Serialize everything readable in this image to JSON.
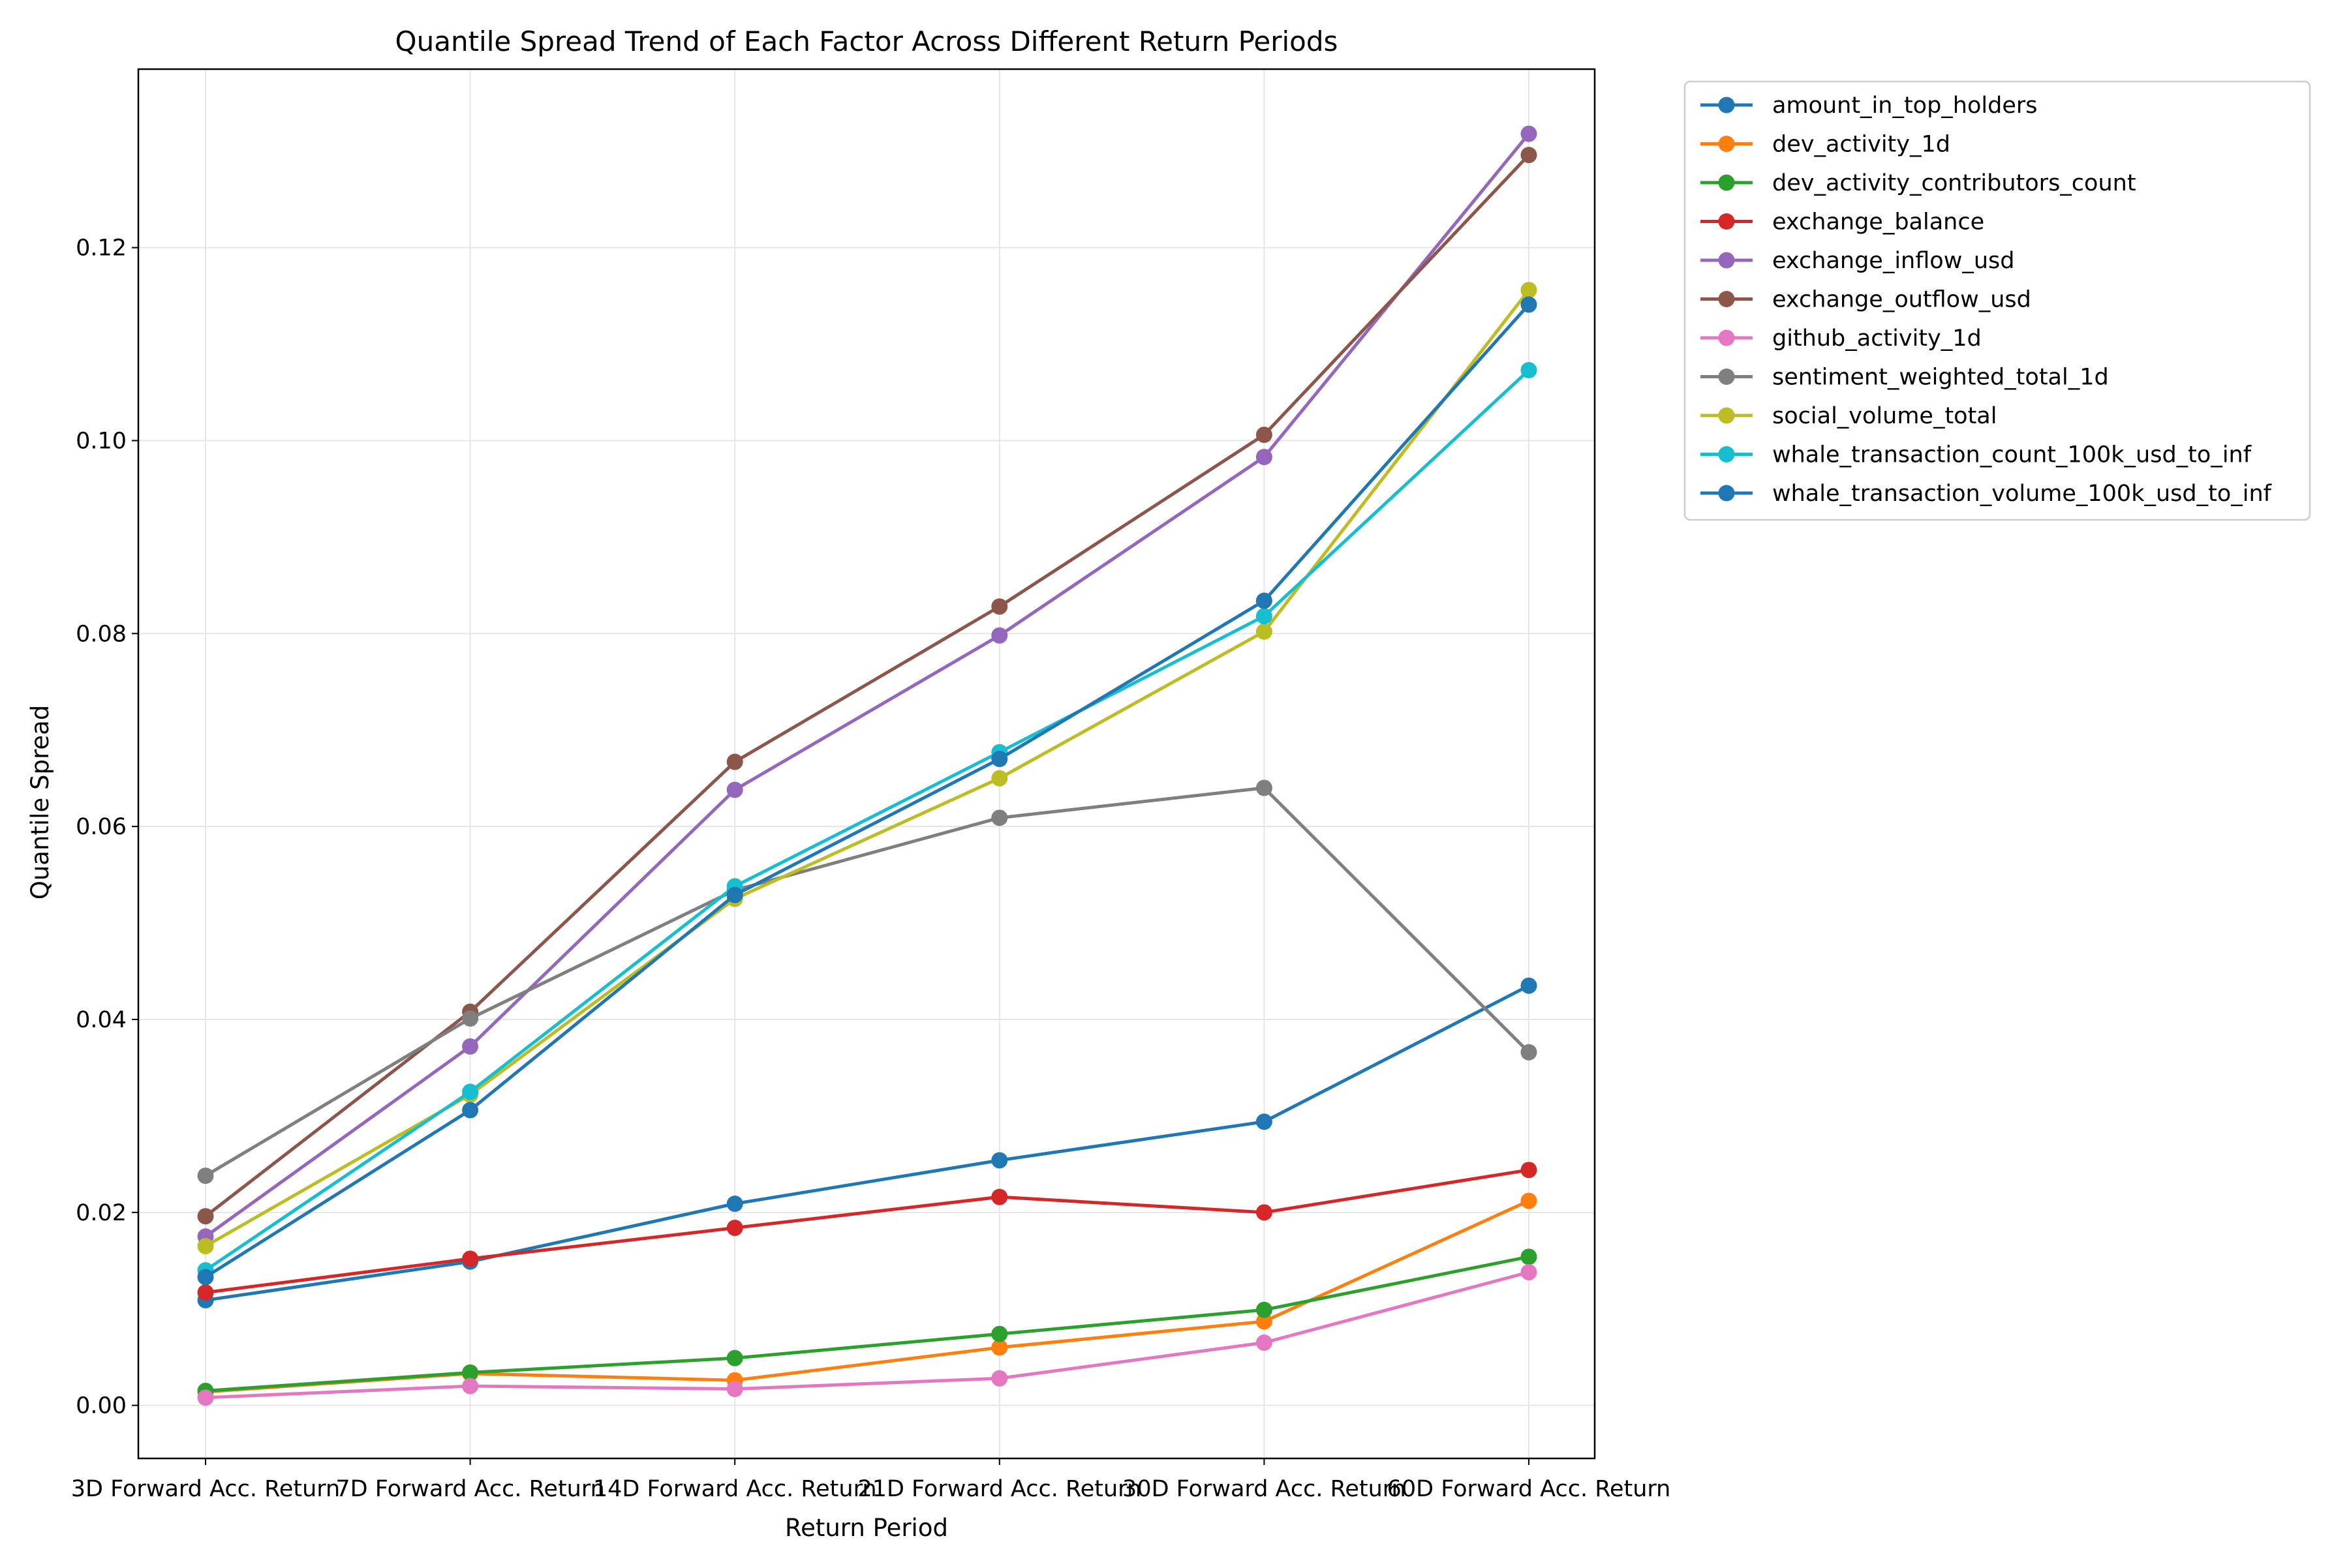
{
  "chart_data": {
    "type": "line",
    "title": "Quantile Spread Trend of Each Factor Across Different Return Periods",
    "xlabel": "Return Period",
    "ylabel": "Quantile Spread",
    "categories": [
      "3D Forward Acc. Return",
      "7D Forward Acc. Return",
      "14D Forward Acc. Return",
      "21D Forward Acc. Return",
      "30D Forward Acc. Return",
      "60D Forward Acc. Return"
    ],
    "ylim": [
      -0.0055,
      0.1385
    ],
    "yticks": [
      "0.00",
      "0.02",
      "0.04",
      "0.06",
      "0.08",
      "0.10",
      "0.12"
    ],
    "ytick_values": [
      0.0,
      0.02,
      0.04,
      0.06,
      0.08,
      0.1,
      0.12
    ],
    "grid": true,
    "legend_placement": "outside upper right",
    "series": [
      {
        "name": "amount_in_top_holders",
        "color": "#1f77b4",
        "values": [
          0.0109,
          0.0149,
          0.0209,
          0.0254,
          0.0294,
          0.0435
        ]
      },
      {
        "name": "dev_activity_1d",
        "color": "#ff7f0e",
        "values": [
          0.0014,
          0.0033,
          0.0026,
          0.006,
          0.0087,
          0.0212
        ]
      },
      {
        "name": "dev_activity_contributors_count",
        "color": "#2ca02c",
        "values": [
          0.0015,
          0.0034,
          0.0049,
          0.0074,
          0.0099,
          0.0154
        ]
      },
      {
        "name": "exchange_balance",
        "color": "#d62728",
        "values": [
          0.0117,
          0.0152,
          0.0184,
          0.0216,
          0.02,
          0.0244
        ]
      },
      {
        "name": "exchange_inflow_usd",
        "color": "#9467bd",
        "values": [
          0.0175,
          0.0372,
          0.0638,
          0.0798,
          0.0983,
          0.1318
        ]
      },
      {
        "name": "exchange_outflow_usd",
        "color": "#8c564b",
        "values": [
          0.0196,
          0.0408,
          0.0667,
          0.0828,
          0.1006,
          0.1296
        ]
      },
      {
        "name": "github_activity_1d",
        "color": "#e377c2",
        "values": [
          0.0008,
          0.002,
          0.0017,
          0.0028,
          0.0065,
          0.0138
        ]
      },
      {
        "name": "sentiment_weighted_total_1d",
        "color": "#7f7f7f",
        "values": [
          0.0238,
          0.0401,
          0.0534,
          0.0609,
          0.064,
          0.0366
        ]
      },
      {
        "name": "social_volume_total",
        "color": "#bcbd22",
        "values": [
          0.0165,
          0.0322,
          0.0525,
          0.065,
          0.0802,
          0.1156
        ]
      },
      {
        "name": "whale_transaction_count_100k_usd_to_inf",
        "color": "#17becf",
        "values": [
          0.014,
          0.0325,
          0.0538,
          0.0677,
          0.0818,
          0.1073
        ]
      },
      {
        "name": "whale_transaction_volume_100k_usd_to_inf",
        "color": "#1f77b4",
        "values": [
          0.0133,
          0.0306,
          0.0529,
          0.067,
          0.0834,
          0.1141
        ]
      }
    ]
  }
}
